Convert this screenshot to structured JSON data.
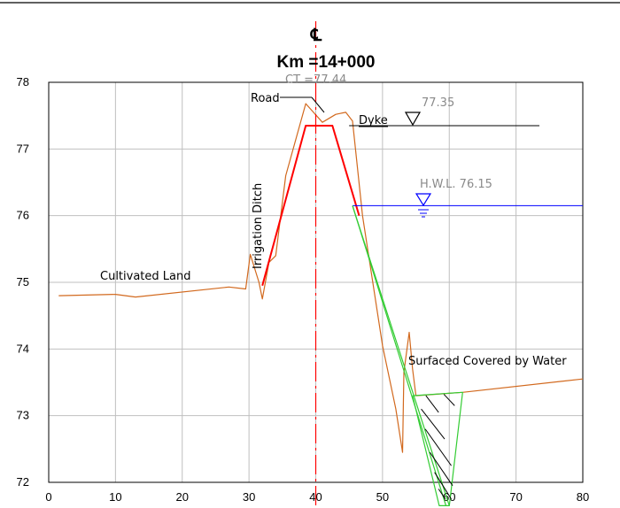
{
  "title": "Km =14+000",
  "centerline_symbol": "℄",
  "ct_label": "CT =77.44",
  "labels": {
    "road": "Road",
    "dyke": "Dyke",
    "dyke_level": "77.35",
    "hwl": "H.W.L. 76.15",
    "irrigation_ditch": "Irrigation Ditch",
    "cultivated_land": "Cultivated Land",
    "surfaced": "Surfaced Covered by Water"
  },
  "colors": {
    "ground": "#d2691e",
    "design": "#ff0000",
    "water": "#0000ff",
    "slope": "#33cc33",
    "grid": "#bfbfbf",
    "marker": "#000000"
  },
  "chart_data": {
    "type": "line",
    "title": "Km =14+000",
    "xlabel": "",
    "ylabel": "",
    "xlim": [
      0,
      80
    ],
    "ylim": [
      72,
      78
    ],
    "x_ticks": [
      0,
      10,
      20,
      30,
      40,
      50,
      60,
      70,
      80
    ],
    "y_ticks": [
      72,
      73,
      74,
      75,
      76,
      77,
      78
    ],
    "grid": true,
    "centerline_x": 40,
    "series": [
      {
        "role": "existing-ground",
        "x": [
          1.5,
          10,
          13,
          27,
          29.5,
          30.2,
          31.5,
          32,
          33,
          34,
          35.5,
          38.5,
          41,
          43,
          44.5,
          45.5,
          47,
          50,
          52,
          53,
          53.2,
          54,
          54.5,
          55,
          62,
          80
        ],
        "y": [
          74.8,
          74.82,
          74.78,
          74.93,
          74.9,
          75.42,
          75.0,
          74.75,
          75.3,
          75.4,
          76.6,
          77.68,
          77.4,
          77.52,
          77.55,
          77.42,
          76.0,
          74.05,
          73.1,
          72.45,
          73.65,
          74.25,
          73.7,
          73.3,
          73.35,
          73.55
        ]
      },
      {
        "role": "design-section",
        "x": [
          32,
          38.5,
          42.5,
          46.5
        ],
        "y": [
          74.95,
          77.35,
          77.35,
          76.0
        ]
      },
      {
        "role": "dyke-level-line",
        "x": [
          45,
          73.5
        ],
        "y": [
          77.35,
          77.35
        ]
      },
      {
        "role": "high-water-level",
        "x": [
          45.5,
          80
        ],
        "y": [
          76.15,
          76.15
        ]
      },
      {
        "role": "slope-line-1",
        "x": [
          45.5,
          60
        ],
        "y": [
          76.15,
          71.65
        ]
      },
      {
        "role": "slope-line-2",
        "x": [
          45.5,
          59.5
        ],
        "y": [
          76.15,
          71.65
        ]
      },
      {
        "role": "trapezoid",
        "x": [
          54.5,
          62,
          60,
          58.5,
          54.5
        ],
        "y": [
          73.3,
          73.35,
          71.65,
          71.65,
          73.3
        ]
      }
    ]
  }
}
